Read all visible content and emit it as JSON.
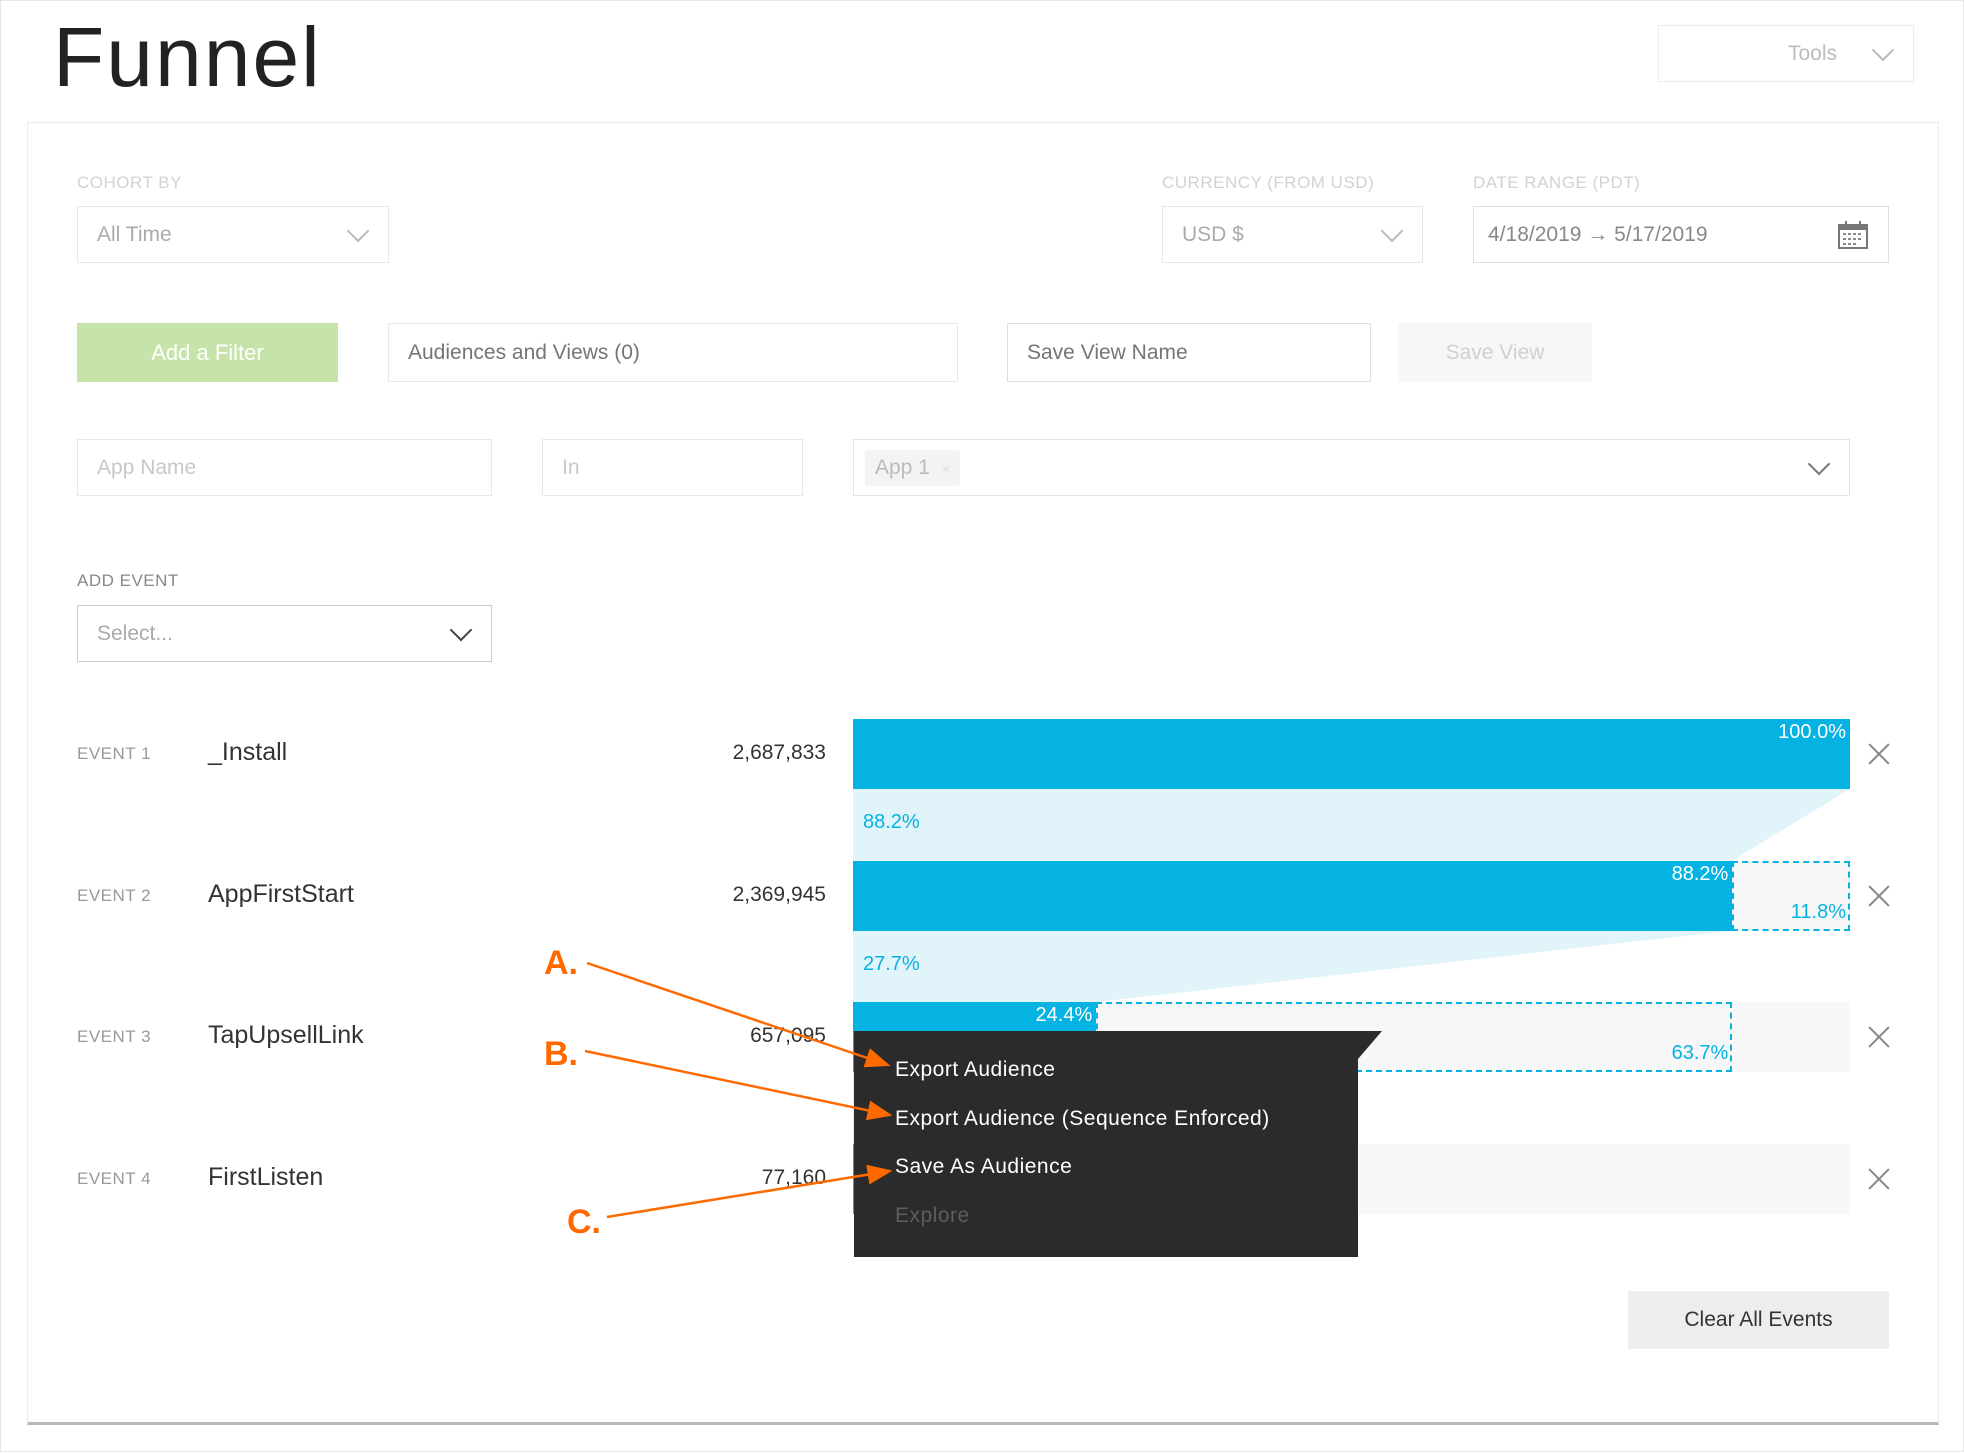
{
  "header": {
    "title": "Funnel",
    "tools_label": "Tools"
  },
  "filters": {
    "cohort_by": {
      "label": "COHORT BY",
      "value": "All Time"
    },
    "currency": {
      "label": "CURRENCY (FROM USD)",
      "value": "USD $"
    },
    "date_range": {
      "label": "DATE RANGE (PDT)",
      "value": "4/18/2019 → 5/17/2019"
    },
    "add_filter_label": "Add a Filter",
    "audiences_placeholder": "Audiences and Views (0)",
    "save_view_name_placeholder": "Save View Name",
    "save_view_label": "Save View",
    "filter_row": {
      "field": "App Name",
      "operator": "In",
      "tag": "App 1",
      "tag_remove": "×"
    }
  },
  "add_event": {
    "label": "ADD EVENT",
    "placeholder": "Select..."
  },
  "chart_data": {
    "type": "bar",
    "orientation": "horizontal-funnel",
    "categories": [
      "_Install",
      "AppFirstStart",
      "TapUpsellLink",
      "FirstListen"
    ],
    "event_labels": [
      "EVENT 1",
      "EVENT 2",
      "EVENT 3",
      "EVENT 4"
    ],
    "counts": [
      "2,687,833",
      "2,369,945",
      "657,095",
      "77,160"
    ],
    "values": [
      2687833,
      2369945,
      657095,
      77160
    ],
    "percent_of_first": [
      100.0,
      88.2,
      24.4,
      2.9
    ],
    "bar_labels": [
      "100.0%",
      "88.2%",
      "24.4%",
      ""
    ],
    "conversion_labels": [
      "88.2%",
      "27.7%"
    ],
    "dropoff_labels": [
      "",
      "11.8%",
      "63.7%",
      ""
    ],
    "xlim": [
      0,
      100
    ],
    "colors": {
      "bar": "#04b3e2",
      "connector": "#e0f4fa",
      "background": "#f7f7f7"
    }
  },
  "context_menu": {
    "items": [
      {
        "label": "Export Audience",
        "enabled": true
      },
      {
        "label": "Export Audience (Sequence Enforced)",
        "enabled": true
      },
      {
        "label": "Save As Audience",
        "enabled": true
      },
      {
        "label": "Explore",
        "enabled": false
      }
    ]
  },
  "annotations": {
    "a": "A.",
    "b": "B.",
    "c": "C.",
    "color": "#ff6a00"
  },
  "footer": {
    "clear_all_label": "Clear All Events"
  }
}
